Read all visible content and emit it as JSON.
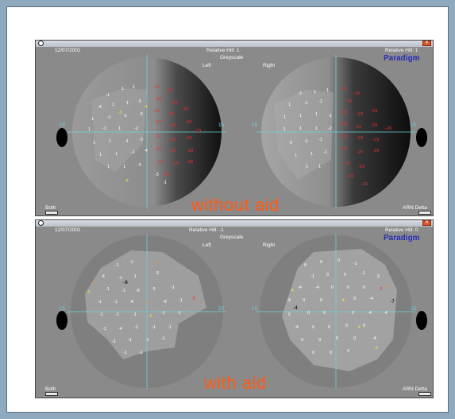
{
  "colors": {
    "overlay_text": "#ff5a14",
    "brand": "#2b2db5",
    "background": "#8fa9bf"
  },
  "top": {
    "date": "12/07/2001",
    "hill_left": "Relative Hill: 1",
    "hill_right": "Relative Hill: 1",
    "greyscale": "Greyscale",
    "left": "Left",
    "right": "Right",
    "brand": "Paradigm",
    "both": "Both",
    "arn": "ARN Delta",
    "overlay": "without aid",
    "axis_label": "15"
  },
  "bottom": {
    "date": "12/07/2001",
    "hill_left": "Relative Hill: -1",
    "hill_right": "Relative Hill: 0",
    "greyscale": "Greyscale",
    "left": "Left",
    "right": "Right",
    "brand": "Paradigm",
    "both": "Both",
    "arn": "ARN Delta",
    "overlay": "with aid",
    "axis_label": "15"
  }
}
